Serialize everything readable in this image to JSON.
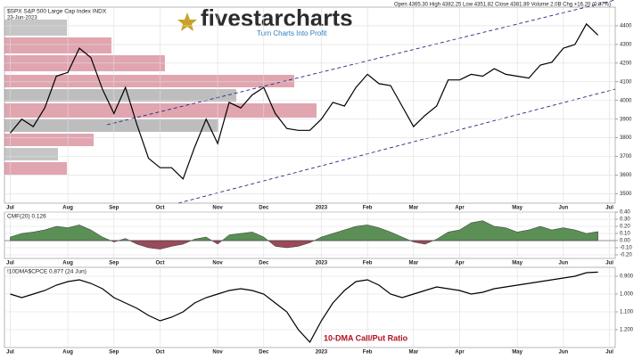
{
  "chart_data": [
    {
      "type": "line",
      "title": "$SPX S&P 500 Large Cap Index INDX",
      "subtitle": "23-Jun-2023",
      "info": "Open 4365.30  High 4382.25  Low 4351.82  Close 4381.89  Volume 2.0B  Chg +16.20 (0.37%)",
      "categories": [
        "Jul",
        null,
        null,
        null,
        null,
        "Aug",
        null,
        null,
        null,
        "Sep",
        null,
        null,
        null,
        "Oct",
        null,
        null,
        null,
        null,
        "Nov",
        null,
        null,
        null,
        "Dec",
        null,
        null,
        null,
        null,
        "2023",
        null,
        null,
        null,
        "Feb",
        null,
        null,
        null,
        "Mar",
        null,
        null,
        null,
        "Apr",
        null,
        null,
        null,
        null,
        "May",
        null,
        null,
        null,
        "Jun",
        null,
        null,
        null,
        "Jul"
      ],
      "values": [
        3825,
        3900,
        3860,
        3960,
        4130,
        4150,
        4280,
        4230,
        4060,
        3930,
        4070,
        3870,
        3690,
        3640,
        3640,
        3580,
        3750,
        3900,
        3770,
        3990,
        3960,
        4030,
        4070,
        3930,
        3850,
        3840,
        3840,
        3900,
        3990,
        3970,
        4070,
        4140,
        4090,
        4080,
        3970,
        3860,
        3920,
        3970,
        4110,
        4110,
        4140,
        4130,
        4170,
        4140,
        4130,
        4120,
        4190,
        4205,
        4280,
        4300,
        4410,
        4350,
        null
      ],
      "color": "#000000",
      "ylim": [
        3450,
        4500
      ],
      "yticks": [
        3500,
        3600,
        3700,
        3800,
        3900,
        4000,
        4100,
        4200,
        4300,
        4400
      ],
      "grid": true
    },
    {
      "type": "area",
      "title": "CMF(20) 0.126",
      "categories": [
        "Jul",
        null,
        null,
        null,
        null,
        "Aug",
        null,
        null,
        null,
        "Sep",
        null,
        null,
        null,
        "Oct",
        null,
        null,
        null,
        null,
        "Nov",
        null,
        null,
        null,
        "Dec",
        null,
        null,
        null,
        null,
        "2023",
        null,
        null,
        null,
        "Feb",
        null,
        null,
        null,
        "Mar",
        null,
        null,
        null,
        "Apr",
        null,
        null,
        null,
        null,
        "May",
        null,
        null,
        null,
        "Jun",
        null,
        null,
        null,
        "Jul"
      ],
      "values": [
        0.05,
        0.1,
        0.12,
        0.15,
        0.2,
        0.18,
        0.22,
        0.15,
        0.05,
        -0.02,
        0.03,
        -0.05,
        -0.1,
        -0.12,
        -0.08,
        -0.05,
        0.02,
        0.05,
        -0.05,
        0.08,
        0.1,
        0.12,
        0.05,
        -0.08,
        -0.1,
        -0.08,
        -0.03,
        0.05,
        0.1,
        0.15,
        0.2,
        0.22,
        0.18,
        0.12,
        0.05,
        -0.02,
        -0.05,
        0.02,
        0.12,
        0.15,
        0.25,
        0.28,
        0.2,
        0.18,
        0.12,
        0.15,
        0.2,
        0.15,
        0.18,
        0.15,
        0.1,
        0.126,
        null
      ],
      "positive_color": "#5b8f55",
      "negative_color": "#9a4a5a",
      "ylim": [
        -0.25,
        0.4
      ],
      "yticks": [
        {
          "value": 0.4,
          "label": "0.40"
        },
        {
          "value": 0.3,
          "label": "0.30"
        },
        {
          "value": 0.2,
          "label": "0.20"
        },
        {
          "value": 0.1,
          "label": "0.10"
        },
        {
          "value": 0,
          "label": "0.00"
        },
        {
          "value": -0.1,
          "label": "-0.10"
        },
        {
          "value": -0.2,
          "label": "-0.20"
        }
      ],
      "grid": true
    },
    {
      "type": "line",
      "title": "!10DMA$CPCE 0.877 (24 Jun)",
      "annotation": "10-DMA Call/Put Ratio",
      "categories": [
        "Jul",
        null,
        null,
        null,
        null,
        "Aug",
        null,
        null,
        null,
        "Sep",
        null,
        null,
        null,
        "Oct",
        null,
        null,
        null,
        null,
        "Nov",
        null,
        null,
        null,
        "Dec",
        null,
        null,
        null,
        null,
        "2023",
        null,
        null,
        null,
        "Feb",
        null,
        null,
        null,
        "Mar",
        null,
        null,
        null,
        "Apr",
        null,
        null,
        null,
        null,
        "May",
        null,
        null,
        null,
        "Jun",
        null,
        null,
        null,
        "Jul"
      ],
      "values": [
        1.0,
        1.02,
        1.0,
        0.98,
        0.95,
        0.93,
        0.92,
        0.94,
        0.97,
        1.02,
        1.05,
        1.08,
        1.12,
        1.15,
        1.13,
        1.1,
        1.05,
        1.02,
        1.0,
        0.98,
        0.97,
        0.98,
        1.0,
        1.05,
        1.1,
        1.2,
        1.27,
        1.15,
        1.05,
        0.98,
        0.93,
        0.92,
        0.95,
        1.0,
        1.02,
        1.0,
        0.98,
        0.96,
        0.97,
        0.98,
        1.0,
        0.99,
        0.97,
        0.96,
        0.95,
        0.94,
        0.93,
        0.92,
        0.91,
        0.9,
        0.88,
        0.877,
        null
      ],
      "color": "#000000",
      "ylim": [
        1.3,
        0.85
      ],
      "yticks": [
        {
          "value": 0.9,
          "label": "0.900"
        },
        {
          "value": 1.0,
          "label": "1.000"
        },
        {
          "value": 1.1,
          "label": "1.100"
        },
        {
          "value": 1.2,
          "label": "1.200"
        }
      ],
      "grid": true
    }
  ],
  "logo": {
    "name": "fivestarcharts",
    "tagline": "Turn Charts Into Profit"
  }
}
